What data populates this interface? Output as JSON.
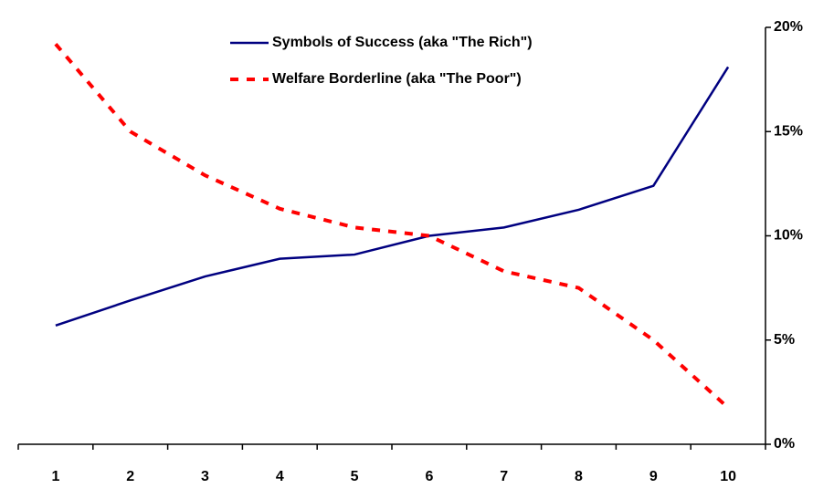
{
  "chart_data": {
    "type": "line",
    "categories": [
      "1",
      "2",
      "3",
      "4",
      "5",
      "6",
      "7",
      "8",
      "9",
      "10"
    ],
    "series": [
      {
        "name": "Symbols of Success (aka \"The Rich\")",
        "color": "#000080",
        "line_style": "solid",
        "values": [
          5.7,
          6.9,
          8.05,
          8.9,
          9.1,
          10.0,
          10.4,
          11.25,
          12.4,
          18.1
        ]
      },
      {
        "name": "Welfare Borderline (aka \"The Poor\")",
        "color": "#ff0000",
        "line_style": "dashed",
        "values": [
          19.2,
          15.0,
          12.9,
          11.3,
          10.4,
          10.0,
          8.3,
          7.5,
          5.0,
          1.75
        ]
      }
    ],
    "ylim": [
      0,
      20
    ],
    "yticks": [
      {
        "value": 0,
        "label": "0%"
      },
      {
        "value": 5,
        "label": "5%"
      },
      {
        "value": 10,
        "label": "10%"
      },
      {
        "value": 15,
        "label": "15%"
      },
      {
        "value": 20,
        "label": "20%"
      }
    ],
    "y_axis_side": "right",
    "legend": "top"
  }
}
